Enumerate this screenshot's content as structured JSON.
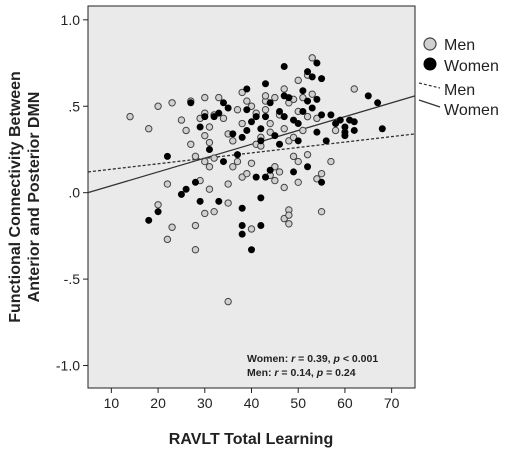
{
  "chart_data": {
    "type": "scatter",
    "xlabel": "RAVLT Total Learning",
    "ylabel_line1": "Functional Connectivity Between",
    "ylabel_line2": "Anterior and Posterior DMN",
    "xlim": [
      5,
      75
    ],
    "ylim": [
      -1.13,
      1.08
    ],
    "x_ticks": [
      10,
      20,
      30,
      40,
      50,
      60,
      70
    ],
    "y_ticks": [
      {
        "value": 1.0,
        "label": "1.0"
      },
      {
        "value": 0.5,
        "label": ".5"
      },
      {
        "value": 0.0,
        "label": ".0"
      },
      {
        "value": -0.5,
        "label": "-.5"
      },
      {
        "value": -1.0,
        "label": "-1.0"
      }
    ],
    "grid": false,
    "legend_position": "right",
    "legend": {
      "men_marker": "Men",
      "women_marker": "Women",
      "men_line": "Men",
      "women_line": "Women"
    },
    "annotation_lines": [
      {
        "group": "Women",
        "r": "0.39",
        "p": "0.001",
        "p_op": "<"
      },
      {
        "group": "Men",
        "r": "0.14",
        "p": "0.24",
        "p_op": "="
      }
    ],
    "colors": {
      "plot_bg": "#eaeaea",
      "men_fill": "#d0d0d0",
      "women_fill": "#000000",
      "line": "#333333"
    },
    "series": [
      {
        "name": "Men",
        "marker": "open-gray-circle",
        "points": [
          [
            14,
            0.44
          ],
          [
            18,
            0.37
          ],
          [
            20,
            0.5
          ],
          [
            20,
            -0.07
          ],
          [
            22,
            0.05
          ],
          [
            22,
            -0.27
          ],
          [
            23,
            -0.2
          ],
          [
            23,
            0.52
          ],
          [
            25,
            0.42
          ],
          [
            26,
            0.36
          ],
          [
            27,
            0.53
          ],
          [
            27,
            0.28
          ],
          [
            28,
            0.21
          ],
          [
            28,
            -0.19
          ],
          [
            28,
            -0.33
          ],
          [
            29,
            0.43
          ],
          [
            29,
            0.07
          ],
          [
            30,
            0.55
          ],
          [
            30,
            0.46
          ],
          [
            30,
            0.33
          ],
          [
            30,
            0.18
          ],
          [
            30,
            -0.12
          ],
          [
            31,
            0.38
          ],
          [
            31,
            0.29
          ],
          [
            31,
            0.15
          ],
          [
            31,
            0.02
          ],
          [
            32,
            0.45
          ],
          [
            32,
            0.2
          ],
          [
            32,
            -0.11
          ],
          [
            33,
            0.55
          ],
          [
            34,
            0.43
          ],
          [
            35,
            0.34
          ],
          [
            35,
            0.05
          ],
          [
            35,
            -0.06
          ],
          [
            35,
            -0.63
          ],
          [
            36,
            0.15
          ],
          [
            36,
            0.3
          ],
          [
            37,
            0.48
          ],
          [
            37,
            0.18
          ],
          [
            38,
            0.58
          ],
          [
            38,
            0.4
          ],
          [
            38,
            0.09
          ],
          [
            39,
            0.53
          ],
          [
            39,
            0.11
          ],
          [
            40,
            0.5
          ],
          [
            40,
            0.17
          ],
          [
            40,
            -0.21
          ],
          [
            41,
            0.46
          ],
          [
            41,
            0.28
          ],
          [
            42,
            0.32
          ],
          [
            42,
            0.27
          ],
          [
            43,
            0.48
          ],
          [
            43,
            0.53
          ],
          [
            43,
            0.56
          ],
          [
            44,
            0.4
          ],
          [
            44,
            0.35
          ],
          [
            44,
            0.1
          ],
          [
            45,
            0.55
          ],
          [
            45,
            0.15
          ],
          [
            45,
            0.07
          ],
          [
            46,
            0.45
          ],
          [
            46,
            0.12
          ],
          [
            47,
            0.6
          ],
          [
            47,
            0.37
          ],
          [
            47,
            0.03
          ],
          [
            47,
            -0.15
          ],
          [
            48,
            0.52
          ],
          [
            48,
            0.3
          ],
          [
            48,
            -0.1
          ],
          [
            48,
            -0.13
          ],
          [
            48,
            -0.18
          ],
          [
            49,
            0.54
          ],
          [
            49,
            0.32
          ],
          [
            49,
            0.21
          ],
          [
            50,
            0.65
          ],
          [
            50,
            0.47
          ],
          [
            50,
            0.18
          ],
          [
            50,
            0.06
          ],
          [
            51,
            0.55
          ],
          [
            51,
            0.36
          ],
          [
            52,
            0.68
          ],
          [
            52,
            0.44
          ],
          [
            52,
            0.22
          ],
          [
            53,
            0.78
          ],
          [
            53,
            0.57
          ],
          [
            54,
            0.43
          ],
          [
            54,
            0.08
          ],
          [
            55,
            0.11
          ],
          [
            55,
            -0.11
          ],
          [
            57,
            0.18
          ],
          [
            58,
            0.36
          ],
          [
            62,
            0.6
          ]
        ]
      },
      {
        "name": "Women",
        "marker": "filled-black-circle",
        "points": [
          [
            18,
            -0.16
          ],
          [
            20,
            -0.11
          ],
          [
            22,
            0.21
          ],
          [
            25,
            -0.01
          ],
          [
            26,
            0.02
          ],
          [
            27,
            0.52
          ],
          [
            28,
            0.06
          ],
          [
            29,
            -0.05
          ],
          [
            29,
            0.38
          ],
          [
            30,
            0.44
          ],
          [
            31,
            0.25
          ],
          [
            32,
            0.44
          ],
          [
            33,
            0.46
          ],
          [
            33,
            -0.05
          ],
          [
            34,
            0.52
          ],
          [
            34,
            0.18
          ],
          [
            35,
            0.49
          ],
          [
            36,
            0.34
          ],
          [
            37,
            0.22
          ],
          [
            38,
            0.32
          ],
          [
            38,
            -0.09
          ],
          [
            38,
            -0.19
          ],
          [
            38,
            -0.24
          ],
          [
            39,
            0.6
          ],
          [
            39,
            0.48
          ],
          [
            39,
            0.36
          ],
          [
            40,
            0.41
          ],
          [
            40,
            -0.33
          ],
          [
            41,
            0.44
          ],
          [
            41,
            0.09
          ],
          [
            42,
            0.37
          ],
          [
            42,
            0.3
          ],
          [
            42,
            -0.03
          ],
          [
            42,
            -0.19
          ],
          [
            43,
            0.63
          ],
          [
            43,
            0.44
          ],
          [
            43,
            0.09
          ],
          [
            44,
            0.52
          ],
          [
            44,
            0.13
          ],
          [
            45,
            0.33
          ],
          [
            46,
            0.28
          ],
          [
            46,
            0.47
          ],
          [
            47,
            0.44
          ],
          [
            47,
            0.56
          ],
          [
            47,
            0.73
          ],
          [
            48,
            0.55
          ],
          [
            49,
            0.42
          ],
          [
            49,
            0.12
          ],
          [
            50,
            0.4
          ],
          [
            50,
            0.3
          ],
          [
            51,
            0.47
          ],
          [
            51,
            0.59
          ],
          [
            52,
            0.7
          ],
          [
            52,
            0.53
          ],
          [
            52,
            0.15
          ],
          [
            53,
            0.67
          ],
          [
            53,
            0.49
          ],
          [
            54,
            0.75
          ],
          [
            54,
            0.54
          ],
          [
            54,
            0.35
          ],
          [
            55,
            0.66
          ],
          [
            55,
            0.45
          ],
          [
            55,
            0.06
          ],
          [
            56,
            0.3
          ],
          [
            57,
            0.45
          ],
          [
            58,
            0.4
          ],
          [
            59,
            0.42
          ],
          [
            60,
            0.38
          ],
          [
            60,
            0.35
          ],
          [
            60,
            0.33
          ],
          [
            61,
            0.42
          ],
          [
            62,
            0.41
          ],
          [
            62,
            0.36
          ],
          [
            65,
            0.56
          ],
          [
            67,
            0.52
          ],
          [
            68,
            0.37
          ]
        ]
      }
    ],
    "fit_lines": [
      {
        "name": "Women",
        "style": "solid",
        "x": [
          5,
          75
        ],
        "y": [
          0.0,
          0.56
        ]
      },
      {
        "name": "Men",
        "style": "dashed",
        "x": [
          5,
          75
        ],
        "y": [
          0.12,
          0.34
        ]
      }
    ]
  }
}
